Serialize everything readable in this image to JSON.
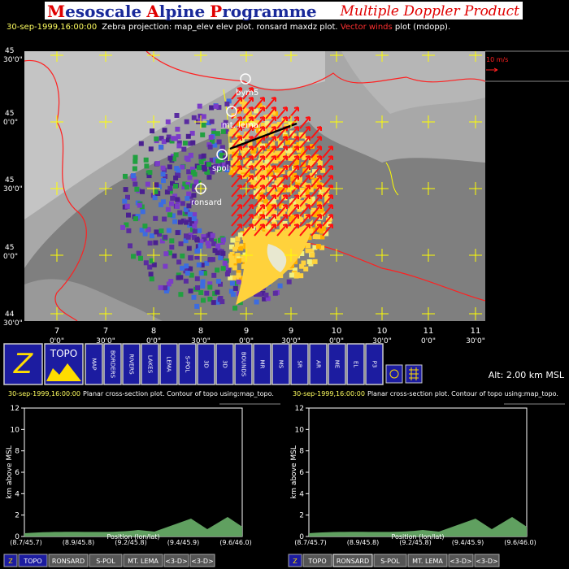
{
  "header": {
    "title_words": [
      "Mesoscale",
      "Alpine",
      "Programme"
    ],
    "product": "Multiple Doppler Product"
  },
  "status": {
    "time": "30-sep-1999,16:00:00",
    "text": "Zebra projection: map_elev elev plot. ronsard maxdz plot.",
    "highlight": "Vector winds",
    "tail": "plot (mdopp)."
  },
  "map": {
    "lat_labels": [
      {
        "deg": "45",
        "min": "30'0\""
      },
      {
        "deg": "45",
        "min": "0'0\""
      },
      {
        "deg": "45",
        "min": "30'0\""
      },
      {
        "deg": "45",
        "min": "0'0\""
      },
      {
        "deg": "44",
        "min": "30'0\""
      }
    ],
    "lon_labels": [
      {
        "deg": "7",
        "min": "0'0\""
      },
      {
        "deg": "7",
        "min": "30'0\""
      },
      {
        "deg": "8",
        "min": "0'0\""
      },
      {
        "deg": "8",
        "min": "30'0\""
      },
      {
        "deg": "9",
        "min": "0'0\""
      },
      {
        "deg": "9",
        "min": "30'0\""
      },
      {
        "deg": "10",
        "min": "0'0\""
      },
      {
        "deg": "10",
        "min": "30'0\""
      },
      {
        "deg": "11",
        "min": "0'0\""
      },
      {
        "deg": "11",
        "min": "30'0\""
      }
    ],
    "stations": [
      "bym5",
      "mt. lema",
      "spol",
      "ronsard"
    ],
    "scale": "10 m/s"
  },
  "toolbar": {
    "buttons": [
      "Z",
      "TOPO",
      "MAP",
      "BORDERS",
      "RIVERS",
      "LAKES",
      "LEMA",
      "S-POL",
      "3D",
      "3D",
      "BOUNDS",
      "MR",
      "MS",
      "SR",
      "AR",
      "ME",
      "EL",
      "P3"
    ],
    "altitude": "Alt: 2.00 km MSL"
  },
  "panels": [
    {
      "time": "30-sep-1999,16:00:00",
      "text": "Planar cross-section plot.  Contour of topo using:map_topo.",
      "ylabel": "km above MSL",
      "xlabel": "Position (lon/lat)",
      "yticks": [
        "0",
        "2",
        "4",
        "6",
        "8",
        "10",
        "12"
      ],
      "xticks": [
        "(8.7/45.7)",
        "(8.9/45.8)",
        "(9.2/45.8)",
        "(9.4/45.9)",
        "(9.6/46.0)"
      ],
      "buttons": [
        "Z",
        "TOPO",
        "RONSARD",
        "S-POL",
        "MT. LEMA",
        "<3-D>",
        "<3-D>"
      ]
    },
    {
      "time": "30-sep-1999,16:00:00",
      "text": "Planar cross-section plot.  Contour of topo using:map_topo.",
      "ylabel": "km above MSL",
      "xlabel": "Position (lon/lat)",
      "yticks": [
        "0",
        "2",
        "4",
        "6",
        "8",
        "10",
        "12"
      ],
      "xticks": [
        "(8.7/45.7)",
        "(8.9/45.8)",
        "(9.2/45.8)",
        "(9.4/45.9)",
        "(9.6/46.0)"
      ],
      "buttons": [
        "Z",
        "TOPO",
        "RONSARD",
        "S-POL",
        "MT. LEMA",
        "<3-D>",
        "<3-D>"
      ]
    }
  ]
}
